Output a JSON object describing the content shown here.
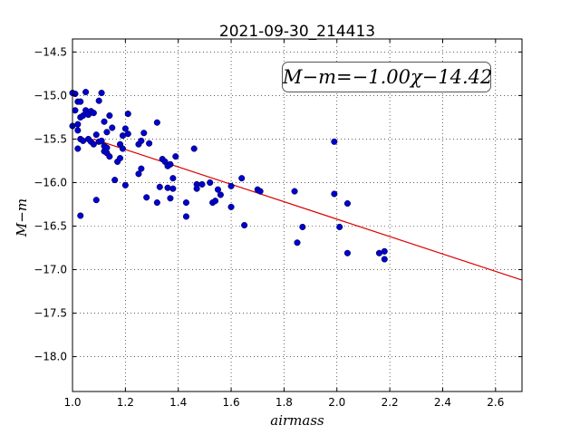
{
  "chart_data": {
    "type": "scatter",
    "title": "2021-09-30_214413",
    "xlabel": "airmass",
    "ylabel": "M−m",
    "annotation": "M−m=−1.00χ−14.42",
    "annotation_position": "top-right",
    "xlim": [
      1.0,
      2.7
    ],
    "ylim": [
      -18.4,
      -14.35
    ],
    "y_inverted": true,
    "grid": true,
    "x_ticks": [
      "1.0",
      "1.2",
      "1.4",
      "1.6",
      "1.8",
      "2.0",
      "2.2",
      "2.4",
      "2.6"
    ],
    "y_ticks": [
      "−14.5",
      "−15.0",
      "−15.5",
      "−16.0",
      "−16.5",
      "−17.0",
      "−17.5",
      "−18.0"
    ],
    "colors": {
      "points": "#0000cc",
      "fit_line": "#dd0000"
    },
    "fit": {
      "slope": -1.0,
      "intercept": -14.42
    },
    "series": [
      {
        "points": [
          [
            1.0,
            -15.35
          ],
          [
            1.0,
            -14.97
          ],
          [
            1.01,
            -14.98
          ],
          [
            1.01,
            -15.17
          ],
          [
            1.02,
            -15.07
          ],
          [
            1.02,
            -15.4
          ],
          [
            1.02,
            -15.33
          ],
          [
            1.02,
            -15.61
          ],
          [
            1.03,
            -15.07
          ],
          [
            1.03,
            -15.25
          ],
          [
            1.03,
            -15.5
          ],
          [
            1.03,
            -16.38
          ],
          [
            1.04,
            -15.52
          ],
          [
            1.04,
            -15.23
          ],
          [
            1.05,
            -14.96
          ],
          [
            1.05,
            -15.17
          ],
          [
            1.06,
            -15.22
          ],
          [
            1.06,
            -15.5
          ],
          [
            1.07,
            -15.53
          ],
          [
            1.07,
            -15.18
          ],
          [
            1.08,
            -15.56
          ],
          [
            1.08,
            -15.2
          ],
          [
            1.09,
            -15.45
          ],
          [
            1.09,
            -16.2
          ],
          [
            1.1,
            -15.53
          ],
          [
            1.1,
            -15.06
          ],
          [
            1.11,
            -14.97
          ],
          [
            1.11,
            -15.52
          ],
          [
            1.12,
            -15.3
          ],
          [
            1.12,
            -15.58
          ],
          [
            1.12,
            -15.64
          ],
          [
            1.13,
            -15.42
          ],
          [
            1.13,
            -15.6
          ],
          [
            1.13,
            -15.66
          ],
          [
            1.14,
            -15.23
          ],
          [
            1.14,
            -15.7
          ],
          [
            1.15,
            -15.37
          ],
          [
            1.16,
            -15.97
          ],
          [
            1.17,
            -15.76
          ],
          [
            1.18,
            -15.72
          ],
          [
            1.18,
            -15.56
          ],
          [
            1.19,
            -15.61
          ],
          [
            1.19,
            -15.46
          ],
          [
            1.2,
            -15.38
          ],
          [
            1.2,
            -16.03
          ],
          [
            1.21,
            -15.21
          ],
          [
            1.21,
            -15.44
          ],
          [
            1.25,
            -15.9
          ],
          [
            1.25,
            -15.56
          ],
          [
            1.26,
            -15.84
          ],
          [
            1.26,
            -15.52
          ],
          [
            1.27,
            -15.43
          ],
          [
            1.28,
            -16.17
          ],
          [
            1.29,
            -15.55
          ],
          [
            1.32,
            -15.31
          ],
          [
            1.32,
            -16.23
          ],
          [
            1.33,
            -16.05
          ],
          [
            1.34,
            -15.73
          ],
          [
            1.35,
            -15.76
          ],
          [
            1.36,
            -15.81
          ],
          [
            1.36,
            -16.06
          ],
          [
            1.37,
            -15.79
          ],
          [
            1.37,
            -16.18
          ],
          [
            1.38,
            -16.07
          ],
          [
            1.38,
            -15.95
          ],
          [
            1.39,
            -15.7
          ],
          [
            1.43,
            -16.23
          ],
          [
            1.43,
            -16.39
          ],
          [
            1.46,
            -15.61
          ],
          [
            1.47,
            -16.02
          ],
          [
            1.47,
            -16.07
          ],
          [
            1.49,
            -16.02
          ],
          [
            1.52,
            -16.0
          ],
          [
            1.53,
            -16.23
          ],
          [
            1.54,
            -16.21
          ],
          [
            1.55,
            -16.08
          ],
          [
            1.56,
            -16.14
          ],
          [
            1.6,
            -16.04
          ],
          [
            1.6,
            -16.28
          ],
          [
            1.64,
            -15.95
          ],
          [
            1.65,
            -16.49
          ],
          [
            1.7,
            -16.08
          ],
          [
            1.71,
            -16.1
          ],
          [
            1.84,
            -16.1
          ],
          [
            1.85,
            -16.69
          ],
          [
            1.87,
            -16.51
          ],
          [
            1.99,
            -15.53
          ],
          [
            1.99,
            -16.13
          ],
          [
            2.01,
            -16.51
          ],
          [
            2.04,
            -16.24
          ],
          [
            2.04,
            -16.81
          ],
          [
            2.16,
            -16.81
          ],
          [
            2.18,
            -16.79
          ],
          [
            2.18,
            -16.88
          ]
        ]
      }
    ]
  }
}
